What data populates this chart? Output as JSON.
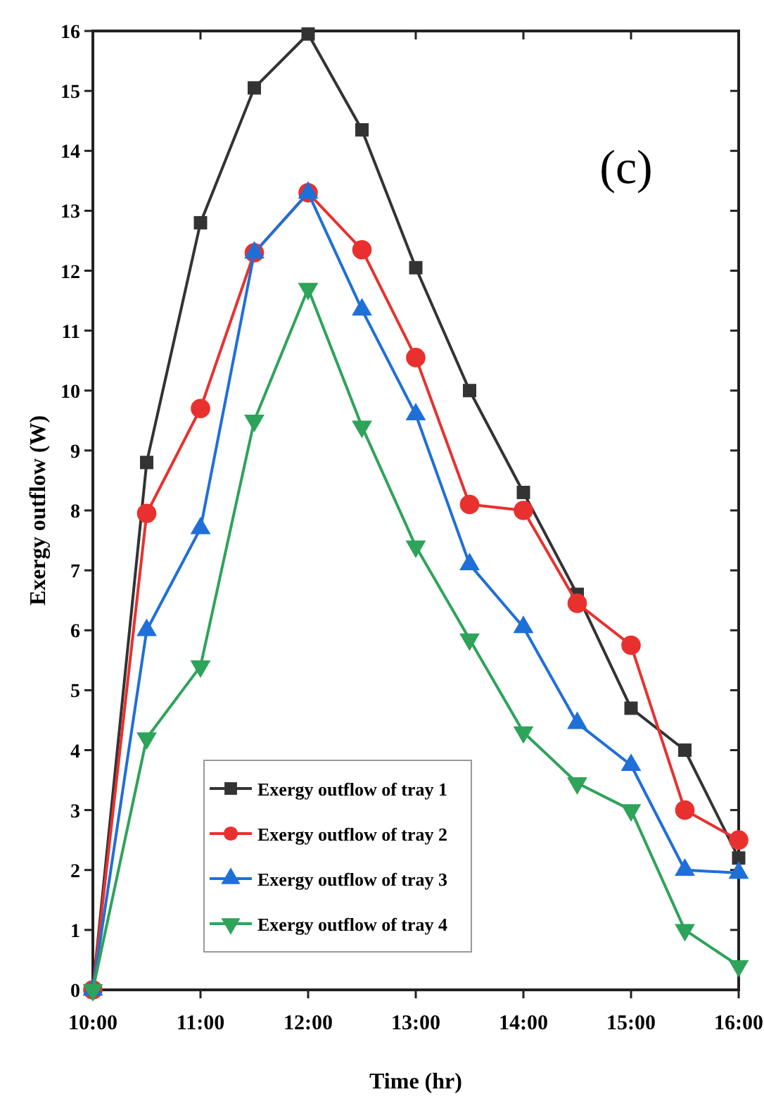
{
  "chart_data": {
    "type": "line",
    "xlabel": "Time (hr)",
    "ylabel": "Exergy outflow (W)",
    "annotations": [
      "(c)"
    ],
    "x": [
      10,
      10.5,
      11,
      11.5,
      12,
      12.5,
      13,
      13.5,
      14,
      14.5,
      15,
      15.5,
      16
    ],
    "xlim": [
      10,
      16
    ],
    "xticks": [
      {
        "value": 10,
        "label": "10:00"
      },
      {
        "value": 11,
        "label": "11:00"
      },
      {
        "value": 12,
        "label": "12:00"
      },
      {
        "value": 13,
        "label": "13:00"
      },
      {
        "value": 14,
        "label": "14:00"
      },
      {
        "value": 15,
        "label": "15:00"
      },
      {
        "value": 16,
        "label": "16:00"
      }
    ],
    "ylim": [
      0,
      16
    ],
    "yticks": [
      0,
      1,
      2,
      3,
      4,
      5,
      6,
      7,
      8,
      9,
      10,
      11,
      12,
      13,
      14,
      15,
      16
    ],
    "grid": false,
    "legend": "bottom left",
    "line_style": "solid",
    "series": [
      {
        "name": "Exergy outflow of tray 1",
        "color": "#333333",
        "marker": "square",
        "values": [
          0,
          8.8,
          12.8,
          15.05,
          15.95,
          14.35,
          12.05,
          10.0,
          8.3,
          6.6,
          4.7,
          4.0,
          2.2
        ]
      },
      {
        "name": "Exergy outflow of tray 2",
        "color": "#e8312f",
        "marker": "circle",
        "values": [
          0,
          7.95,
          9.7,
          12.3,
          13.3,
          12.35,
          10.55,
          8.1,
          8.0,
          6.45,
          5.75,
          3.0,
          2.5
        ]
      },
      {
        "name": "Exergy outflow of tray 3",
        "color": "#1f6fd8",
        "marker": "triangle",
        "values": [
          0,
          6.0,
          7.7,
          12.3,
          13.3,
          11.35,
          9.6,
          7.1,
          6.05,
          4.45,
          3.75,
          2.0,
          1.95
        ]
      },
      {
        "name": "Exergy outflow of tray 4",
        "color": "#2ea35a",
        "marker": "triangle-down",
        "values": [
          0,
          4.2,
          5.4,
          9.5,
          11.7,
          9.4,
          7.4,
          5.85,
          4.3,
          3.45,
          3.0,
          1.0,
          0.4
        ]
      }
    ]
  }
}
